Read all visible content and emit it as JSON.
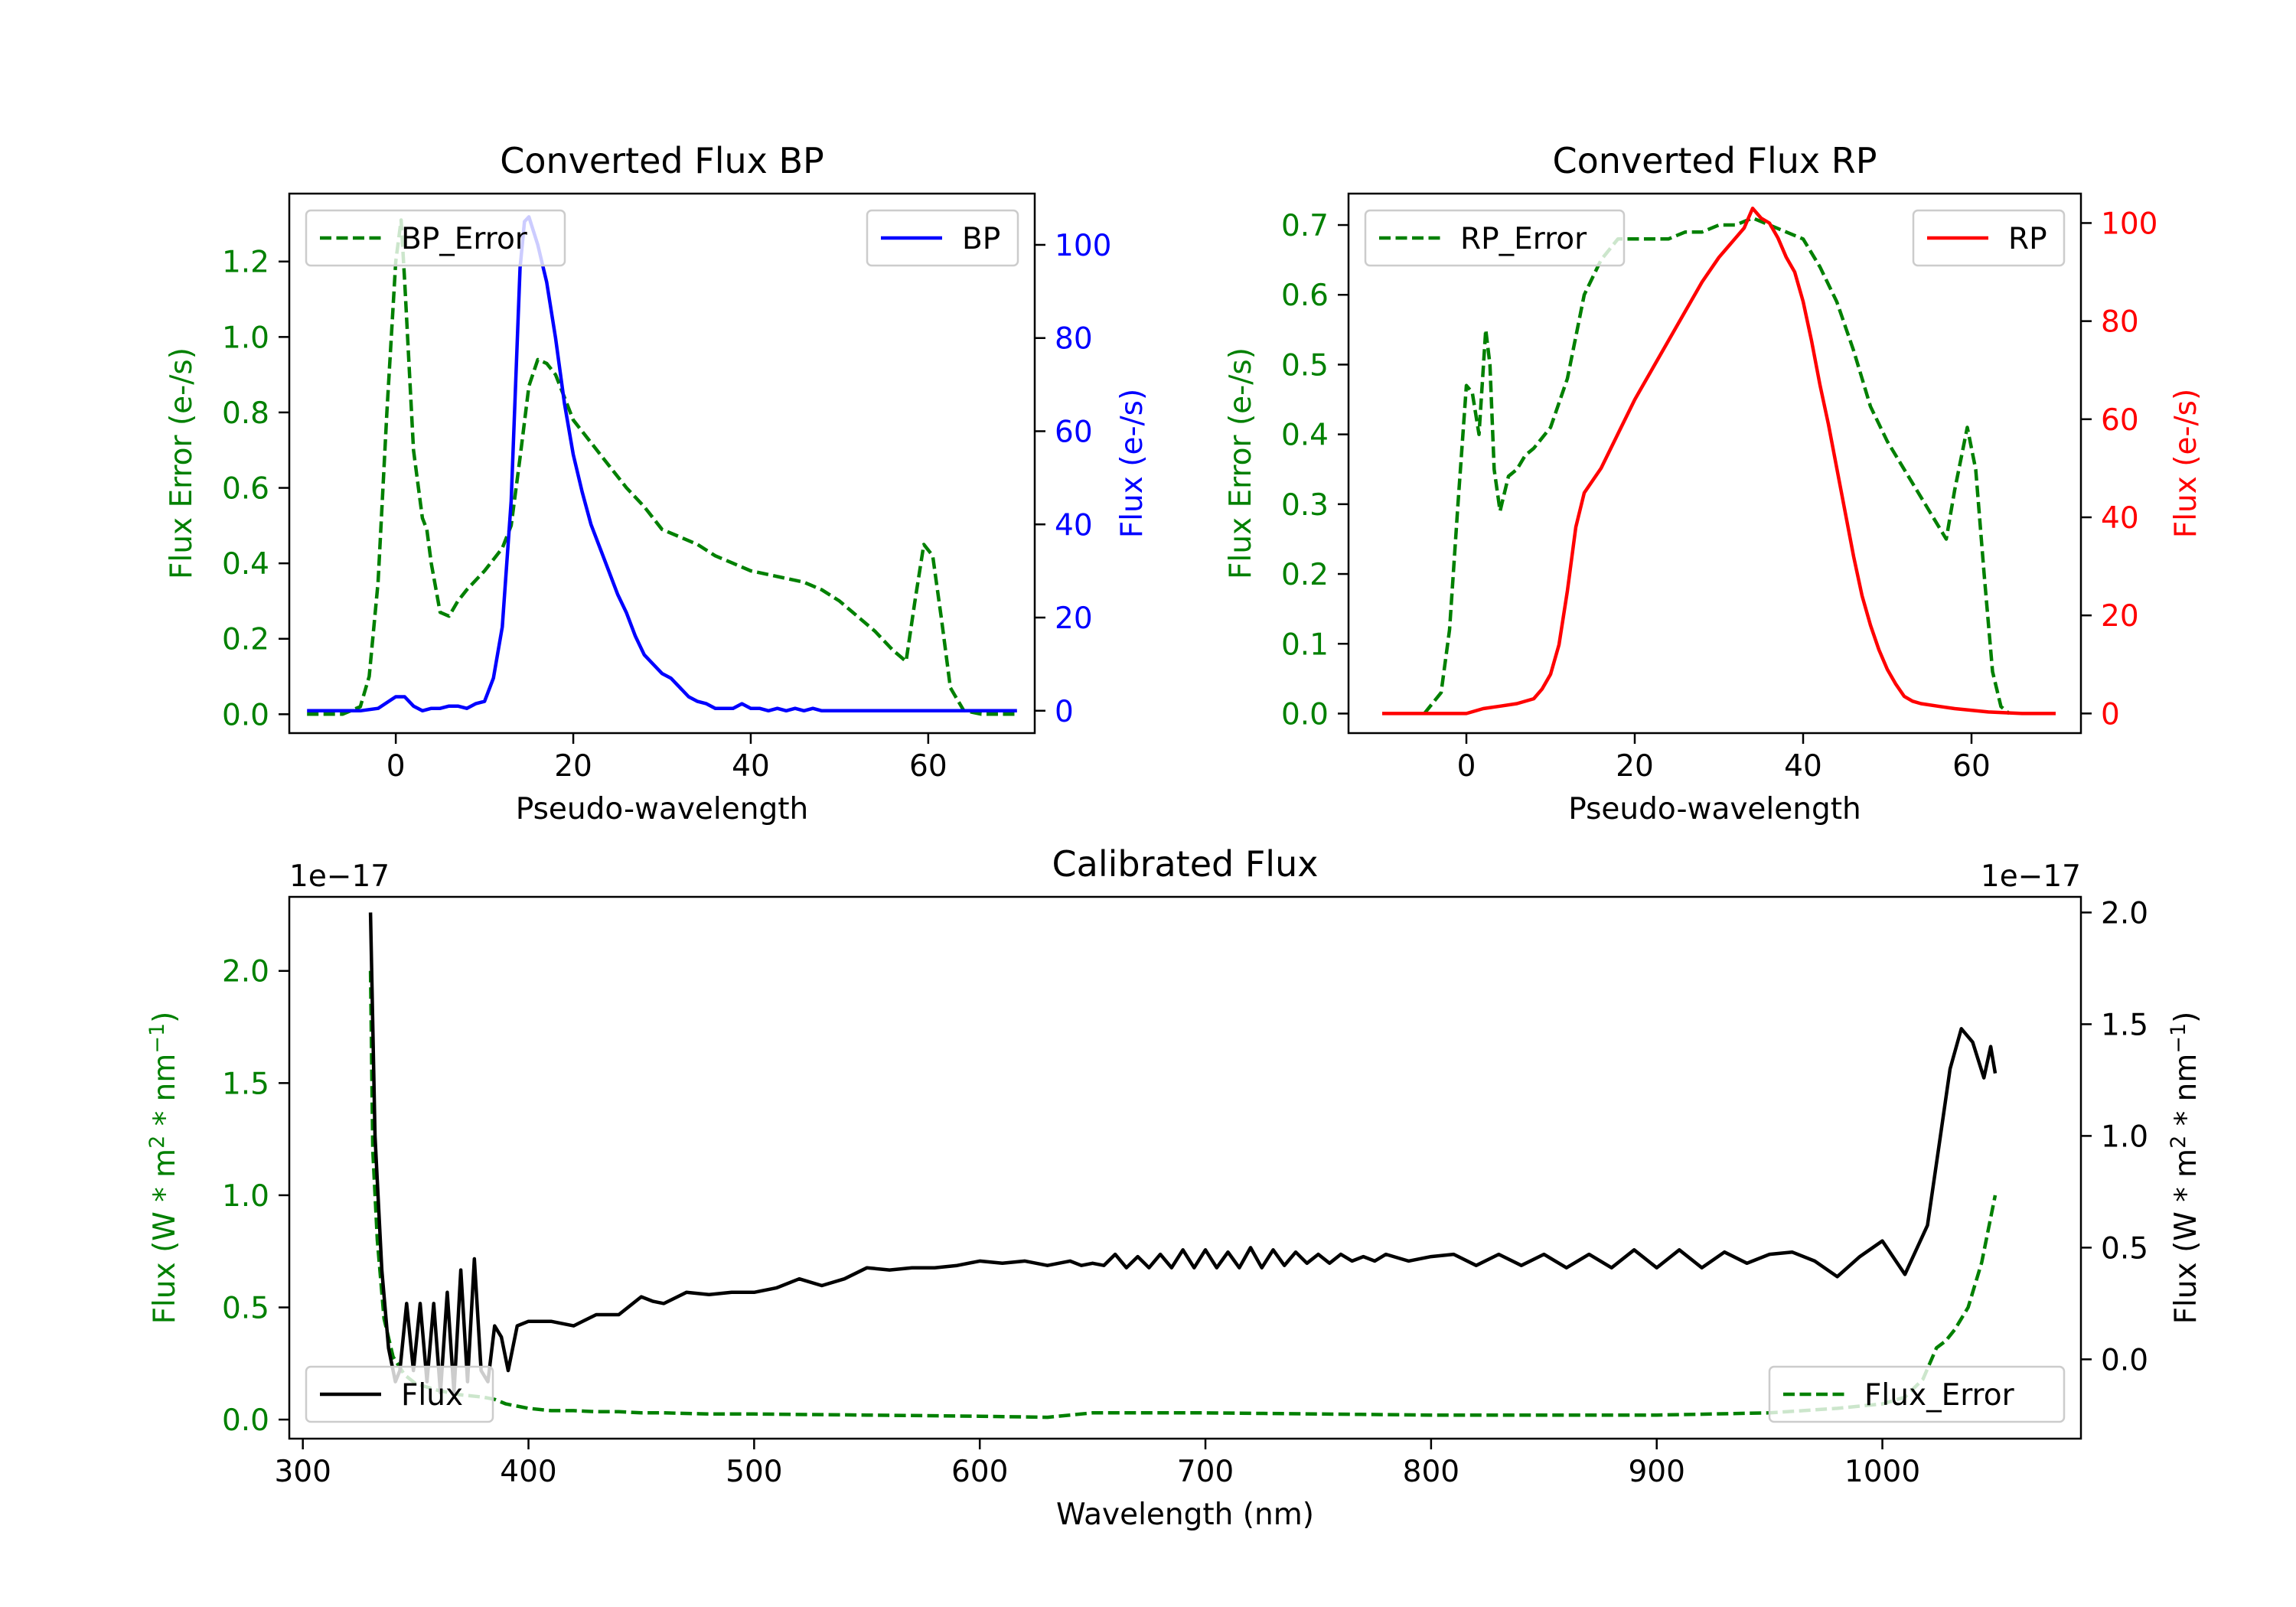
{
  "chart_data": [
    {
      "id": "bp",
      "type": "line",
      "title": "Converted Flux BP",
      "xlabel": "Pseudo-wavelength",
      "xlim": [
        -12,
        72
      ],
      "xticks": [
        0,
        20,
        40,
        60
      ],
      "left_axis": {
        "label": "Flux Error (e-/s)",
        "color": "#008000",
        "ylim": [
          -0.05,
          1.38
        ],
        "ticks": [
          0.0,
          0.2,
          0.4,
          0.6,
          0.8,
          1.0,
          1.2
        ]
      },
      "right_axis": {
        "label": "Flux (e-/s)",
        "color": "#0000ff",
        "ylim": [
          -4.8,
          111
        ],
        "ticks": [
          0,
          20,
          40,
          60,
          80,
          100
        ]
      },
      "series": [
        {
          "name": "BP_Error",
          "axis": "left",
          "color": "#008000",
          "style": "dashed",
          "x": [
            -10,
            -6,
            -4,
            -3,
            -2,
            -1,
            0,
            0.6,
            1,
            2,
            3,
            3.5,
            4,
            5,
            6,
            7,
            8,
            10,
            12,
            13,
            14,
            15,
            16,
            17,
            18,
            19,
            20,
            22,
            24,
            26,
            28,
            30,
            32,
            34,
            36,
            38,
            40,
            42,
            44,
            46,
            48,
            50,
            52,
            54,
            56,
            57.5,
            58.5,
            59.5,
            60.5,
            61.5,
            62.5,
            64,
            66,
            70
          ],
          "values": [
            0.0,
            0.0,
            0.02,
            0.1,
            0.35,
            0.8,
            1.2,
            1.31,
            1.15,
            0.7,
            0.52,
            0.49,
            0.4,
            0.27,
            0.26,
            0.3,
            0.33,
            0.38,
            0.44,
            0.5,
            0.68,
            0.87,
            0.94,
            0.93,
            0.9,
            0.84,
            0.78,
            0.72,
            0.66,
            0.6,
            0.55,
            0.49,
            0.47,
            0.45,
            0.42,
            0.4,
            0.38,
            0.37,
            0.36,
            0.35,
            0.33,
            0.3,
            0.26,
            0.22,
            0.17,
            0.14,
            0.3,
            0.45,
            0.42,
            0.25,
            0.07,
            0.01,
            0.0,
            0.0
          ]
        },
        {
          "name": "BP",
          "axis": "right",
          "color": "#0000ff",
          "style": "solid",
          "x": [
            -10,
            -6,
            -4,
            -2,
            0,
            1,
            2,
            3,
            4,
            5,
            6,
            7,
            8,
            9,
            10,
            11,
            12,
            13,
            13.5,
            14,
            14.5,
            15,
            15.5,
            16,
            17,
            18,
            19,
            20,
            21,
            22,
            23,
            24,
            25,
            26,
            27,
            28,
            29,
            30,
            31,
            32,
            33,
            34,
            35,
            36,
            37,
            38,
            39,
            40,
            41,
            42,
            43,
            44,
            45,
            46,
            47,
            48,
            50,
            52,
            55,
            57,
            60,
            62,
            64,
            66,
            70
          ],
          "values": [
            0,
            0,
            0,
            0.5,
            3,
            3,
            1,
            0,
            0.5,
            0.5,
            1,
            1,
            0.5,
            1.5,
            2,
            7,
            18,
            45,
            70,
            95,
            105,
            106,
            103,
            100,
            92,
            80,
            66,
            55,
            47,
            40,
            35,
            30,
            25,
            21,
            16,
            12,
            10,
            8,
            7,
            5,
            3,
            2,
            1.5,
            0.5,
            0.5,
            0.5,
            1.5,
            0.5,
            0.5,
            0,
            0.5,
            0,
            0.5,
            0,
            0.5,
            0,
            0,
            0,
            0,
            0,
            0,
            0,
            0,
            0,
            0
          ]
        }
      ],
      "legend": [
        {
          "label": "BP_Error",
          "position": "upper-left"
        },
        {
          "label": "BP",
          "position": "upper-right"
        }
      ]
    },
    {
      "id": "rp",
      "type": "line",
      "title": "Converted Flux RP",
      "xlabel": "Pseudo-wavelength",
      "xlim": [
        -14,
        73
      ],
      "xticks": [
        0,
        20,
        40,
        60
      ],
      "left_axis": {
        "label": "Flux Error (e-/s)",
        "color": "#008000",
        "ylim": [
          -0.028,
          0.745
        ],
        "ticks": [
          0.0,
          0.1,
          0.2,
          0.3,
          0.4,
          0.5,
          0.6,
          0.7
        ]
      },
      "right_axis": {
        "label": "Flux (e-/s)",
        "color": "#ff0000",
        "ylim": [
          -4,
          106
        ],
        "ticks": [
          0,
          20,
          40,
          60,
          80,
          100
        ]
      },
      "series": [
        {
          "name": "RP_Error",
          "axis": "left",
          "color": "#008000",
          "style": "dashed",
          "x": [
            -5,
            -3,
            -2,
            -1,
            0,
            0.7,
            1.5,
            2.3,
            2.8,
            3.3,
            4,
            5,
            6,
            7,
            8,
            10,
            12,
            14,
            16,
            18,
            20,
            22,
            24,
            26,
            28,
            30,
            32,
            34,
            36,
            38,
            40,
            42,
            44,
            46,
            48,
            50,
            52,
            54,
            56,
            57,
            58,
            59.5,
            60.5,
            61.5,
            62.5,
            63.5,
            64.5
          ],
          "values": [
            0.0,
            0.03,
            0.12,
            0.3,
            0.47,
            0.46,
            0.4,
            0.55,
            0.5,
            0.35,
            0.29,
            0.34,
            0.35,
            0.37,
            0.38,
            0.41,
            0.48,
            0.6,
            0.65,
            0.68,
            0.68,
            0.68,
            0.68,
            0.69,
            0.69,
            0.7,
            0.7,
            0.71,
            0.7,
            0.69,
            0.68,
            0.64,
            0.59,
            0.52,
            0.44,
            0.39,
            0.35,
            0.31,
            0.27,
            0.25,
            0.32,
            0.41,
            0.35,
            0.2,
            0.06,
            0.01,
            0.0
          ]
        },
        {
          "name": "RP",
          "axis": "right",
          "color": "#ff0000",
          "style": "solid",
          "x": [
            -10,
            -4,
            -2,
            0,
            2,
            4,
            6,
            8,
            9,
            10,
            11,
            12,
            13,
            14,
            16,
            18,
            20,
            22,
            24,
            26,
            28,
            30,
            31,
            32,
            33,
            34,
            35,
            36,
            37,
            38,
            39,
            40,
            41,
            42,
            43,
            44,
            45,
            46,
            47,
            48,
            49,
            50,
            51,
            52,
            53,
            54,
            56,
            58,
            62,
            66,
            70
          ],
          "values": [
            0,
            0,
            0,
            0,
            1,
            1.5,
            2,
            3,
            5,
            8,
            14,
            25,
            38,
            45,
            50,
            57,
            64,
            70,
            76,
            82,
            88,
            93,
            95,
            97,
            99,
            103,
            101,
            100,
            97,
            93,
            90,
            84,
            76,
            67,
            59,
            50,
            41,
            32,
            24,
            18,
            13,
            9,
            6,
            3.5,
            2.5,
            2,
            1.5,
            1,
            0.3,
            0,
            0
          ]
        }
      ],
      "legend": [
        {
          "label": "RP_Error",
          "position": "upper-left"
        },
        {
          "label": "RP",
          "position": "upper-right"
        }
      ]
    },
    {
      "id": "cal",
      "type": "line",
      "title": "Calibrated Flux",
      "xlabel": "Wavelength (nm)",
      "xlim": [
        294,
        1088
      ],
      "xticks": [
        300,
        400,
        500,
        600,
        700,
        800,
        900,
        1000
      ],
      "left_axis": {
        "label": "Flux (W * m^2 * nm^-1)",
        "color": "#008000",
        "offset_text": "1e−17",
        "ylim": [
          -0.085,
          2.33
        ],
        "ticks": [
          0.0,
          0.5,
          1.0,
          1.5,
          2.0
        ],
        "tick_labels": [
          "0.0",
          "0.5",
          "1.0",
          "1.5",
          "2.0"
        ]
      },
      "right_axis": {
        "label": "Flux (W * m^2 * nm^-1)",
        "color": "#000000",
        "offset_text": "1e−17",
        "ylim": [
          -0.355,
          2.07
        ],
        "ticks": [
          0.0,
          0.5,
          1.0,
          1.5,
          2.0
        ],
        "tick_labels": [
          "0.0",
          "0.5",
          "1.0",
          "1.5",
          "2.0"
        ]
      },
      "series": [
        {
          "name": "Flux_Error",
          "axis": "left",
          "color": "#008000",
          "style": "dashed",
          "x": [
            330,
            331,
            333,
            336,
            340,
            345,
            350,
            360,
            370,
            380,
            385,
            390,
            395,
            400,
            410,
            420,
            430,
            440,
            450,
            460,
            480,
            500,
            550,
            600,
            630,
            640,
            650,
            700,
            800,
            900,
            950,
            980,
            1000,
            1010,
            1018,
            1024,
            1028,
            1032,
            1038,
            1044,
            1050
          ],
          "values": [
            2.0,
            1.2,
            0.8,
            0.45,
            0.28,
            0.2,
            0.16,
            0.13,
            0.11,
            0.1,
            0.09,
            0.07,
            0.06,
            0.05,
            0.04,
            0.04,
            0.035,
            0.035,
            0.03,
            0.03,
            0.025,
            0.025,
            0.02,
            0.015,
            0.01,
            0.02,
            0.03,
            0.03,
            0.02,
            0.02,
            0.03,
            0.05,
            0.07,
            0.1,
            0.18,
            0.32,
            0.35,
            0.4,
            0.5,
            0.7,
            1.0
          ]
        },
        {
          "name": "Flux",
          "axis": "right",
          "color": "#000000",
          "style": "solid",
          "x": [
            330,
            332,
            335,
            338,
            341,
            343,
            346,
            349,
            352,
            355,
            358,
            361,
            364,
            367,
            370,
            373,
            376,
            379,
            382,
            385,
            388,
            391,
            395,
            400,
            410,
            420,
            430,
            440,
            450,
            455,
            460,
            470,
            480,
            490,
            500,
            510,
            520,
            530,
            540,
            550,
            560,
            570,
            580,
            590,
            600,
            610,
            620,
            630,
            640,
            645,
            650,
            655,
            660,
            665,
            670,
            675,
            680,
            685,
            690,
            695,
            700,
            705,
            710,
            715,
            720,
            725,
            730,
            735,
            740,
            745,
            750,
            755,
            760,
            765,
            770,
            775,
            780,
            790,
            800,
            810,
            820,
            830,
            840,
            850,
            860,
            870,
            880,
            890,
            900,
            910,
            920,
            930,
            940,
            950,
            960,
            970,
            980,
            990,
            1000,
            1010,
            1020,
            1025,
            1030,
            1035,
            1040,
            1045,
            1048,
            1050
          ],
          "values": [
            2.0,
            1.0,
            0.4,
            0.05,
            -0.1,
            -0.05,
            0.25,
            -0.05,
            0.25,
            -0.1,
            0.25,
            -0.15,
            0.3,
            -0.15,
            0.4,
            -0.1,
            0.45,
            -0.05,
            -0.1,
            0.15,
            0.1,
            -0.05,
            0.15,
            0.17,
            0.17,
            0.15,
            0.2,
            0.2,
            0.28,
            0.26,
            0.25,
            0.3,
            0.29,
            0.3,
            0.3,
            0.32,
            0.36,
            0.33,
            0.36,
            0.41,
            0.4,
            0.41,
            0.41,
            0.42,
            0.44,
            0.43,
            0.44,
            0.42,
            0.44,
            0.42,
            0.43,
            0.42,
            0.47,
            0.41,
            0.46,
            0.41,
            0.47,
            0.41,
            0.49,
            0.41,
            0.49,
            0.41,
            0.48,
            0.41,
            0.5,
            0.41,
            0.49,
            0.42,
            0.48,
            0.43,
            0.47,
            0.43,
            0.47,
            0.44,
            0.46,
            0.44,
            0.47,
            0.44,
            0.46,
            0.47,
            0.42,
            0.47,
            0.42,
            0.47,
            0.41,
            0.47,
            0.41,
            0.49,
            0.41,
            0.49,
            0.41,
            0.48,
            0.43,
            0.47,
            0.48,
            0.44,
            0.37,
            0.46,
            0.53,
            0.38,
            0.6,
            0.95,
            1.3,
            1.48,
            1.42,
            1.26,
            1.4,
            1.28
          ]
        }
      ],
      "legend": [
        {
          "label": "Flux",
          "position": "lower-left"
        },
        {
          "label": "Flux_Error",
          "position": "lower-right"
        }
      ]
    }
  ]
}
